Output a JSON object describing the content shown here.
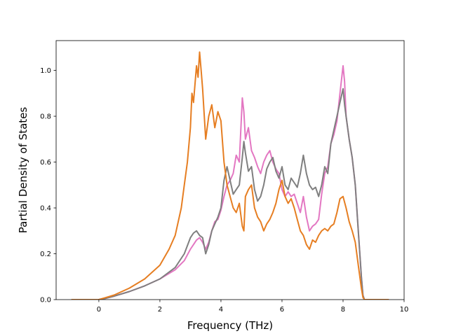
{
  "chart_data": {
    "type": "line",
    "xlabel": "Frequency (THz)",
    "ylabel": "Partial Density of States",
    "xlim": [
      -1.4,
      10
    ],
    "ylim": [
      0,
      1.13
    ],
    "xticks": [
      0,
      2,
      4,
      6,
      8,
      10
    ],
    "xtick_labels": [
      "0",
      "2",
      "4",
      "6",
      "8",
      "10"
    ],
    "yticks": [
      0.0,
      0.2,
      0.4,
      0.6,
      0.8,
      1.0
    ],
    "ytick_labels": [
      "0.0",
      "0.2",
      "0.4",
      "0.6",
      "0.8",
      "1.0"
    ],
    "grid": false,
    "series": [
      {
        "color": "#e377c2",
        "x": [
          -0.9,
          0.0,
          0.2,
          0.5,
          1.0,
          1.5,
          2.0,
          2.5,
          2.8,
          3.0,
          3.1,
          3.2,
          3.3,
          3.4,
          3.5,
          3.6,
          3.7,
          3.8,
          3.9,
          4.0,
          4.1,
          4.2,
          4.3,
          4.4,
          4.5,
          4.6,
          4.7,
          4.75,
          4.8,
          4.9,
          5.0,
          5.1,
          5.2,
          5.3,
          5.4,
          5.5,
          5.6,
          5.7,
          5.8,
          5.9,
          6.0,
          6.1,
          6.2,
          6.3,
          6.4,
          6.5,
          6.6,
          6.7,
          6.8,
          6.9,
          7.0,
          7.1,
          7.2,
          7.3,
          7.4,
          7.5,
          7.6,
          7.7,
          7.8,
          7.9,
          8.0,
          8.05,
          8.1,
          8.2,
          8.3,
          8.4,
          8.5,
          8.6,
          8.65,
          8.7,
          9.5
        ],
        "y": [
          0.0,
          0.0,
          0.005,
          0.015,
          0.035,
          0.06,
          0.09,
          0.13,
          0.17,
          0.22,
          0.24,
          0.26,
          0.27,
          0.25,
          0.22,
          0.25,
          0.3,
          0.34,
          0.35,
          0.39,
          0.45,
          0.5,
          0.52,
          0.55,
          0.63,
          0.6,
          0.88,
          0.82,
          0.7,
          0.75,
          0.65,
          0.62,
          0.58,
          0.55,
          0.6,
          0.63,
          0.65,
          0.6,
          0.57,
          0.55,
          0.48,
          0.45,
          0.47,
          0.45,
          0.46,
          0.42,
          0.38,
          0.45,
          0.36,
          0.3,
          0.32,
          0.33,
          0.35,
          0.46,
          0.55,
          0.58,
          0.68,
          0.72,
          0.78,
          0.9,
          1.02,
          0.95,
          0.8,
          0.7,
          0.62,
          0.5,
          0.3,
          0.1,
          0.02,
          0.0,
          0.0
        ]
      },
      {
        "color": "#7f7f7f",
        "x": [
          -0.9,
          0.0,
          0.2,
          0.5,
          1.0,
          1.5,
          2.0,
          2.5,
          2.8,
          3.0,
          3.1,
          3.2,
          3.3,
          3.4,
          3.5,
          3.6,
          3.7,
          3.8,
          3.9,
          4.0,
          4.1,
          4.2,
          4.3,
          4.4,
          4.5,
          4.6,
          4.7,
          4.75,
          4.8,
          4.9,
          5.0,
          5.1,
          5.2,
          5.3,
          5.4,
          5.5,
          5.6,
          5.7,
          5.8,
          5.9,
          6.0,
          6.1,
          6.2,
          6.3,
          6.4,
          6.5,
          6.6,
          6.7,
          6.8,
          6.9,
          7.0,
          7.1,
          7.2,
          7.3,
          7.4,
          7.5,
          7.6,
          7.7,
          7.8,
          7.9,
          8.0,
          8.05,
          8.1,
          8.2,
          8.3,
          8.4,
          8.5,
          8.6,
          8.65,
          8.7,
          9.5
        ],
        "y": [
          0.0,
          0.0,
          0.005,
          0.015,
          0.035,
          0.06,
          0.09,
          0.14,
          0.2,
          0.27,
          0.29,
          0.3,
          0.28,
          0.27,
          0.2,
          0.24,
          0.3,
          0.33,
          0.36,
          0.4,
          0.52,
          0.58,
          0.52,
          0.46,
          0.48,
          0.5,
          0.62,
          0.69,
          0.64,
          0.56,
          0.58,
          0.48,
          0.43,
          0.45,
          0.5,
          0.57,
          0.6,
          0.62,
          0.56,
          0.53,
          0.58,
          0.5,
          0.48,
          0.53,
          0.51,
          0.49,
          0.55,
          0.63,
          0.55,
          0.5,
          0.48,
          0.49,
          0.45,
          0.5,
          0.58,
          0.55,
          0.68,
          0.74,
          0.8,
          0.86,
          0.92,
          0.85,
          0.8,
          0.7,
          0.62,
          0.5,
          0.3,
          0.1,
          0.02,
          0.0,
          0.0
        ]
      },
      {
        "color": "#e67e22",
        "x": [
          -0.9,
          0.0,
          0.2,
          0.5,
          1.0,
          1.5,
          2.0,
          2.3,
          2.5,
          2.7,
          2.8,
          2.9,
          3.0,
          3.05,
          3.1,
          3.2,
          3.25,
          3.3,
          3.35,
          3.4,
          3.5,
          3.6,
          3.7,
          3.8,
          3.9,
          4.0,
          4.1,
          4.2,
          4.3,
          4.4,
          4.5,
          4.6,
          4.7,
          4.75,
          4.8,
          4.9,
          5.0,
          5.1,
          5.2,
          5.3,
          5.4,
          5.5,
          5.6,
          5.7,
          5.8,
          5.9,
          6.0,
          6.1,
          6.2,
          6.3,
          6.4,
          6.5,
          6.6,
          6.7,
          6.8,
          6.9,
          7.0,
          7.1,
          7.2,
          7.3,
          7.4,
          7.5,
          7.6,
          7.7,
          7.8,
          7.9,
          8.0,
          8.1,
          8.2,
          8.3,
          8.4,
          8.5,
          8.6,
          8.65,
          8.7,
          9.5
        ],
        "y": [
          0.0,
          0.0,
          0.008,
          0.02,
          0.05,
          0.09,
          0.15,
          0.22,
          0.28,
          0.4,
          0.5,
          0.6,
          0.75,
          0.9,
          0.86,
          1.02,
          0.97,
          1.08,
          1.0,
          0.92,
          0.7,
          0.8,
          0.85,
          0.75,
          0.82,
          0.78,
          0.6,
          0.5,
          0.45,
          0.4,
          0.38,
          0.42,
          0.32,
          0.3,
          0.45,
          0.48,
          0.5,
          0.4,
          0.36,
          0.34,
          0.3,
          0.33,
          0.35,
          0.38,
          0.42,
          0.48,
          0.52,
          0.45,
          0.42,
          0.44,
          0.4,
          0.35,
          0.3,
          0.28,
          0.24,
          0.22,
          0.26,
          0.25,
          0.28,
          0.3,
          0.31,
          0.3,
          0.32,
          0.33,
          0.38,
          0.44,
          0.45,
          0.4,
          0.34,
          0.3,
          0.25,
          0.15,
          0.05,
          0.01,
          0.0,
          0.0
        ]
      }
    ]
  }
}
